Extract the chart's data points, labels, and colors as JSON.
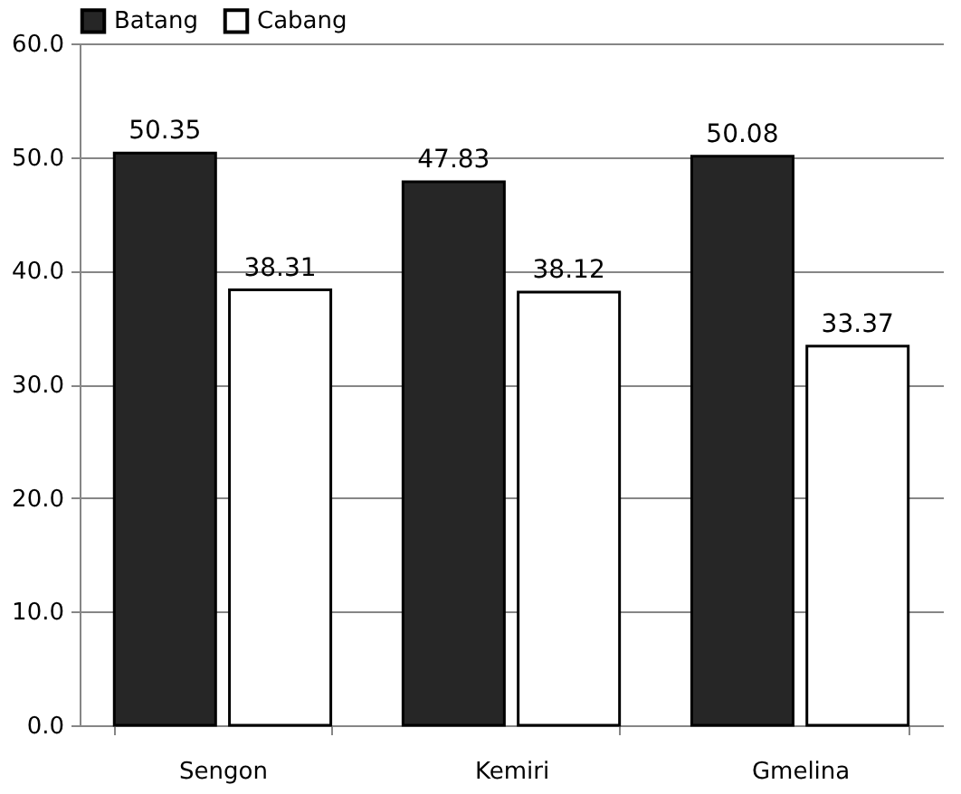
{
  "chart_data": {
    "type": "bar",
    "categories": [
      "Sengon",
      "Kemiri",
      "Gmelina"
    ],
    "series": [
      {
        "name": "Batang",
        "color": "#262626",
        "values": [
          50.35,
          47.83,
          50.08
        ]
      },
      {
        "name": "Cabang",
        "color": "#ffffff",
        "values": [
          38.31,
          38.12,
          33.37
        ]
      }
    ],
    "ylim": [
      0,
      60
    ],
    "yticks": [
      {
        "value": 0,
        "label": "0.0"
      },
      {
        "value": 10,
        "label": "10.0"
      },
      {
        "value": 20,
        "label": "20.0"
      },
      {
        "value": 30,
        "label": "30.0"
      },
      {
        "value": 40,
        "label": "40.0"
      },
      {
        "value": 50,
        "label": "50.0"
      },
      {
        "value": 60,
        "label": "60.0"
      }
    ],
    "grid": "y",
    "legend": "top",
    "data_labels": true
  }
}
